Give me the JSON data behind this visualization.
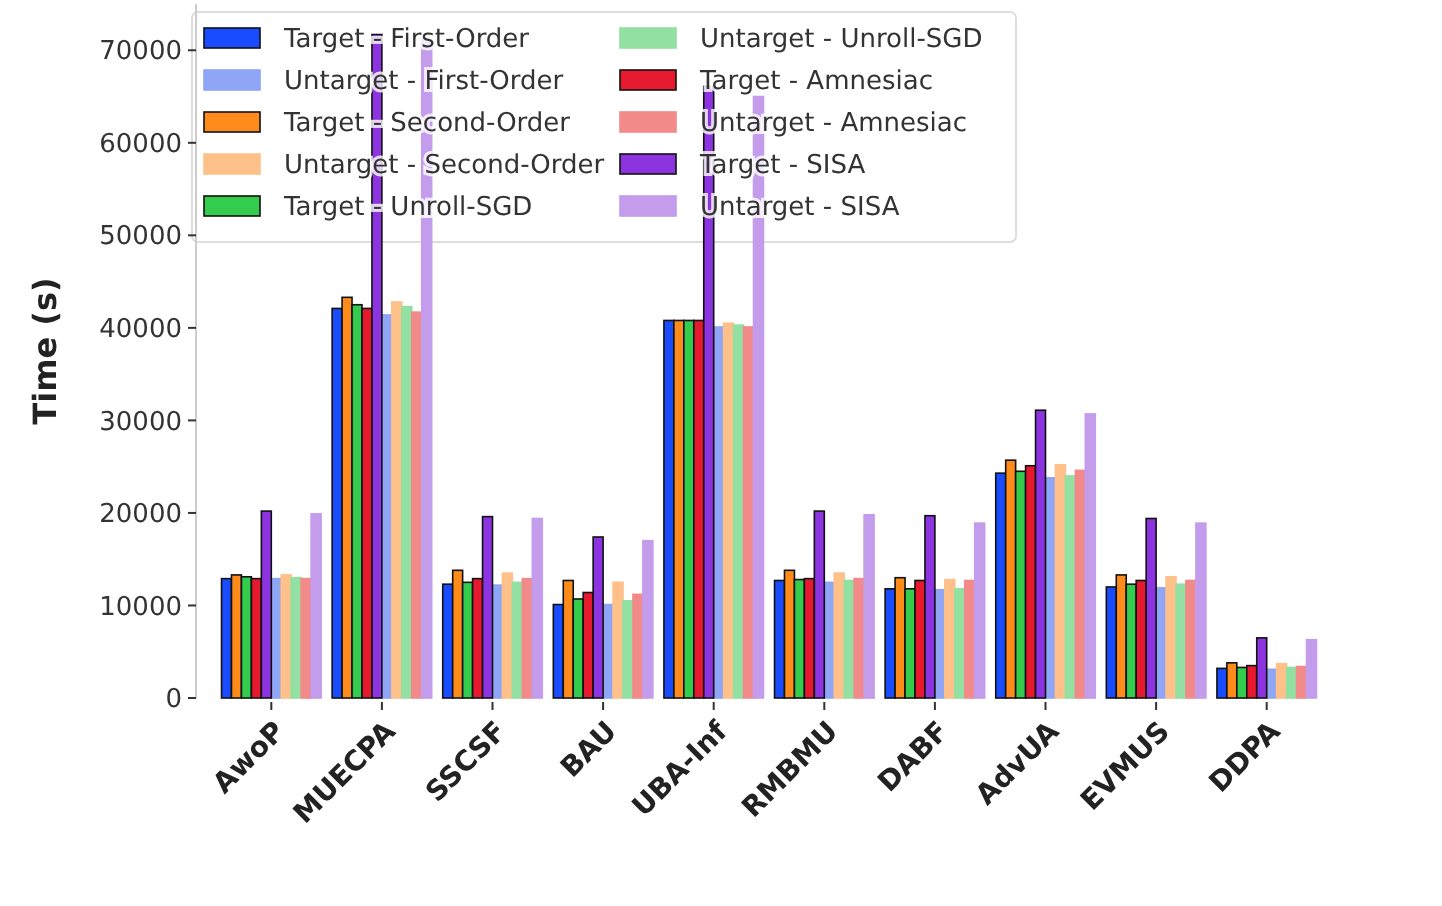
{
  "chart_data": {
    "type": "bar",
    "ylabel": "Time (s)",
    "categories": [
      "AwoP",
      "MUECPA",
      "SSCSF",
      "BAU",
      "UBA-Inf",
      "RMBMU",
      "DABF",
      "AdvUA",
      "EVMUS",
      "DDPA"
    ],
    "ylim": [
      0,
      75000
    ],
    "yticks": [
      0,
      10000,
      20000,
      30000,
      40000,
      50000,
      60000,
      70000
    ],
    "legend": "top left",
    "grid": false,
    "series": [
      {
        "name": "Target - First-Order",
        "color": "#1a4cff",
        "values": [
          12900,
          42100,
          12300,
          10100,
          40800,
          12700,
          11800,
          24300,
          12000,
          3200
        ]
      },
      {
        "name": "Untarget - First-Order",
        "color": "#8ea6f5",
        "values": [
          12900,
          41400,
          12200,
          10100,
          40100,
          12500,
          11700,
          23800,
          11900,
          3100
        ]
      },
      {
        "name": "Target - Second-Order",
        "color": "#ff8c1a",
        "values": [
          13300,
          43300,
          13800,
          12700,
          40800,
          13800,
          13000,
          25700,
          13300,
          3800
        ]
      },
      {
        "name": "Untarget - Second-Order",
        "color": "#ffc08a",
        "values": [
          13300,
          42800,
          13500,
          12500,
          40500,
          13500,
          12800,
          25200,
          13100,
          3700
        ]
      },
      {
        "name": "Target - Unroll-SGD",
        "color": "#33cc4d",
        "values": [
          13100,
          42500,
          12500,
          10700,
          40800,
          12800,
          11800,
          24500,
          12300,
          3300
        ]
      },
      {
        "name": "Untarget - Unroll-SGD",
        "color": "#92e0a2",
        "values": [
          13000,
          42300,
          12500,
          10500,
          40300,
          12700,
          11800,
          24000,
          12300,
          3300
        ]
      },
      {
        "name": "Target - Amnesiac",
        "color": "#e6192e",
        "values": [
          12900,
          42100,
          12900,
          11400,
          40800,
          12900,
          12700,
          25100,
          12700,
          3500
        ]
      },
      {
        "name": "Untarget - Amnesiac",
        "color": "#f28a8a",
        "values": [
          12900,
          41700,
          12900,
          11200,
          40100,
          12900,
          12700,
          24600,
          12700,
          3400
        ]
      },
      {
        "name": "Target - SISA",
        "color": "#8b34e0",
        "values": [
          20200,
          71700,
          19600,
          17400,
          66100,
          20200,
          19700,
          31100,
          19400,
          6500
        ]
      },
      {
        "name": "Untarget - SISA",
        "color": "#c39ceb",
        "values": [
          19900,
          71100,
          19400,
          17000,
          65000,
          19800,
          18900,
          30700,
          18900,
          6300
        ]
      }
    ]
  }
}
